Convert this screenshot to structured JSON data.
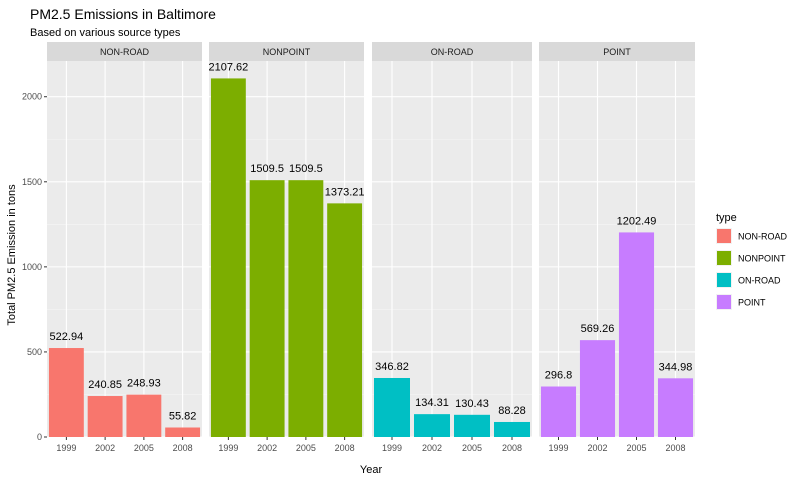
{
  "chart_data": {
    "type": "bar",
    "title": "PM2.5 Emissions in Baltimore",
    "subtitle": "Based on various source types",
    "xlabel": "Year",
    "ylabel": "Total PM2.5 Emission in tons",
    "categories": [
      "1999",
      "2002",
      "2005",
      "2008"
    ],
    "ylim": [
      0,
      2210
    ],
    "yticks": [
      0,
      500,
      1000,
      1500,
      2000
    ],
    "facet_by": "type",
    "legend": {
      "title": "type",
      "position": "right"
    },
    "grid": true,
    "series": [
      {
        "name": "NON-ROAD",
        "color": "#F8766D",
        "values": [
          522.94,
          240.85,
          248.93,
          55.82
        ],
        "labels": [
          "522.94",
          "240.85",
          "248.93",
          "55.82"
        ]
      },
      {
        "name": "NONPOINT",
        "color": "#7CAE00",
        "values": [
          2107.62,
          1509.5,
          1509.5,
          1373.21
        ],
        "labels": [
          "2107.62",
          "1509.5",
          "1509.5",
          "1373.21"
        ]
      },
      {
        "name": "ON-ROAD",
        "color": "#00BFC4",
        "values": [
          346.82,
          134.31,
          130.43,
          88.28
        ],
        "labels": [
          "346.82",
          "134.31",
          "130.43",
          "88.28"
        ]
      },
      {
        "name": "POINT",
        "color": "#C77CFF",
        "values": [
          296.8,
          569.26,
          1202.49,
          344.98
        ],
        "labels": [
          "296.8",
          "569.26",
          "1202.49",
          "344.98"
        ]
      }
    ]
  }
}
